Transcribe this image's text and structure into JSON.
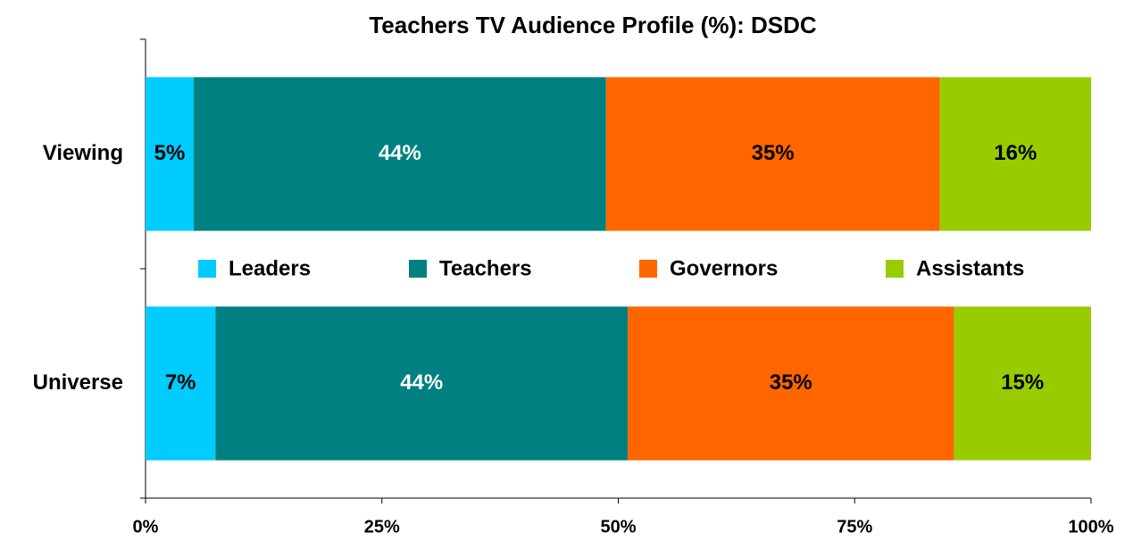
{
  "chart_data": {
    "type": "bar",
    "orientation": "horizontal",
    "stacked": true,
    "title": "Teachers TV Audience Profile (%): DSDC",
    "categories": [
      "Viewing",
      "Universe"
    ],
    "series": [
      {
        "name": "Leaders",
        "color": "#00ccff",
        "label_color": "#000000",
        "values": [
          5.1,
          7.4
        ],
        "value_labels": [
          "5%",
          "7%"
        ]
      },
      {
        "name": "Teachers",
        "color": "#008080",
        "label_color": "#ffffff",
        "values": [
          43.6,
          43.6
        ],
        "value_labels": [
          "44%",
          "44%"
        ]
      },
      {
        "name": "Governors",
        "color": "#ff6600",
        "label_color": "#000000",
        "values": [
          35.3,
          34.5
        ],
        "value_labels": [
          "35%",
          "35%"
        ]
      },
      {
        "name": "Assistants",
        "color": "#99cc00",
        "label_color": "#000000",
        "values": [
          16.0,
          14.5
        ],
        "value_labels": [
          "16%",
          "15%"
        ]
      }
    ],
    "xlim": [
      0,
      100
    ],
    "xticks": [
      {
        "value": 0,
        "label": "0%"
      },
      {
        "value": 25,
        "label": "25%"
      },
      {
        "value": 50,
        "label": "50%"
      },
      {
        "value": 75,
        "label": "75%"
      },
      {
        "value": 100,
        "label": "100%"
      }
    ],
    "legend": "center"
  }
}
